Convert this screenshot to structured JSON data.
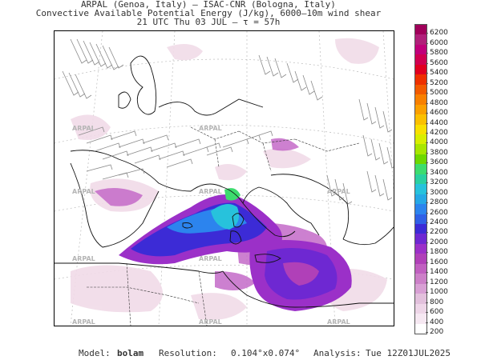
{
  "header": {
    "line1": "ARPAL (Genoa, Italy)  —  ISAC-CNR (Bologna, Italy)",
    "line2": "Convective Available Potential Energy (J/kg), 6000–10m wind shear",
    "line3": "21 UTC Thu 03 JUL  –  τ = 57h"
  },
  "map": {
    "watermark": "ARPAL",
    "colors": {
      "sea_cape_low": "#e2c0dc",
      "purple": "#9b30c8",
      "blue": "#3c2bd6",
      "cyan": "#27c2dc",
      "green": "#3ddc6e"
    }
  },
  "colorbar": {
    "labels": [
      "6200",
      "6000",
      "5800",
      "5600",
      "5400",
      "5200",
      "5000",
      "4800",
      "4600",
      "4400",
      "4200",
      "4000",
      "3800",
      "3600",
      "3400",
      "3200",
      "3000",
      "2800",
      "2600",
      "2400",
      "2200",
      "2000",
      "1800",
      "1600",
      "1400",
      "1200",
      "1000",
      "800",
      "600",
      "400",
      "200"
    ],
    "colors": [
      "#a0005a",
      "#b0207a",
      "#c0007a",
      "#d00050",
      "#e00020",
      "#ee3000",
      "#f25a00",
      "#f88000",
      "#fba000",
      "#fbc000",
      "#f8e000",
      "#d8ee00",
      "#a8e600",
      "#6ed800",
      "#3ddc6e",
      "#2ad0a0",
      "#27c2dc",
      "#26a8e6",
      "#2c84ee",
      "#3060e6",
      "#3c2bd6",
      "#6e28d2",
      "#9b30c8",
      "#b040b8",
      "#c060c0",
      "#cc80c8",
      "#d8a0d4",
      "#e2c0dc",
      "#eed6e8",
      "#f6e8f2",
      "#ffffff"
    ]
  },
  "footer": {
    "model_label": "Model:",
    "model_value": "bolam",
    "resolution_label": "Resolution:",
    "resolution_value": "0.104°x0.074°",
    "analysis_label": "Analysis:",
    "analysis_value": "Tue 12Z01JUL2025"
  }
}
